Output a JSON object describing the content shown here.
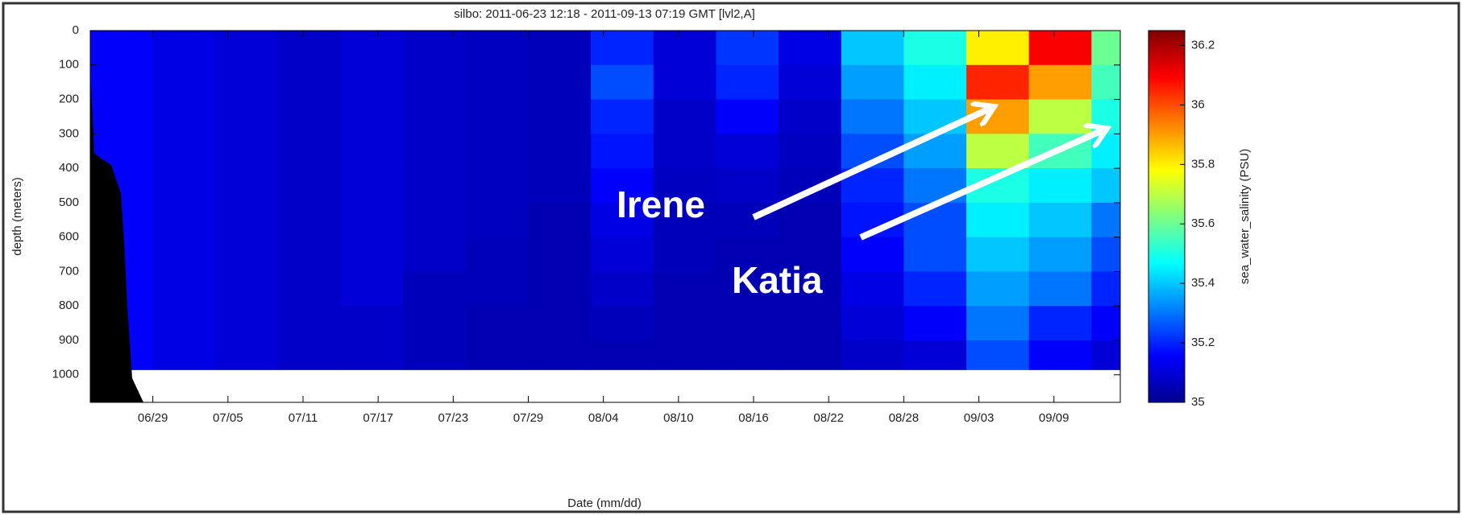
{
  "chart_data": {
    "type": "heatmap",
    "title": "silbo: 2011-06-23 12:18 - 2011-09-13 07:19 GMT [lvl2,A]",
    "x_label": "Date (mm/dd)",
    "y_label": "depth (meters)",
    "colorbar_label": "sea_water_salinity (PSU)",
    "x_bins": [
      175,
      180,
      185,
      190,
      195,
      200,
      205,
      210,
      215,
      220,
      225,
      230,
      235,
      240,
      245,
      250,
      255,
      257.3
    ],
    "y_bins": [
      0,
      100,
      200,
      300,
      400,
      500,
      600,
      700,
      800,
      900,
      985
    ],
    "values": [
      [
        35.15,
        35.15,
        35.15,
        35.15,
        35.15,
        35.15,
        35.15,
        35.15,
        35.15,
        35.15
      ],
      [
        35.12,
        35.12,
        35.12,
        35.12,
        35.12,
        35.12,
        35.12,
        35.12,
        35.12,
        35.12
      ],
      [
        35.1,
        35.1,
        35.1,
        35.1,
        35.1,
        35.1,
        35.1,
        35.1,
        35.1,
        35.1
      ],
      [
        35.08,
        35.08,
        35.08,
        35.08,
        35.08,
        35.08,
        35.08,
        35.08,
        35.08,
        35.08
      ],
      [
        35.1,
        35.1,
        35.1,
        35.1,
        35.1,
        35.1,
        35.1,
        35.1,
        35.08,
        35.08
      ],
      [
        35.08,
        35.08,
        35.08,
        35.08,
        35.08,
        35.08,
        35.08,
        35.06,
        35.06,
        35.06
      ],
      [
        35.07,
        35.07,
        35.07,
        35.07,
        35.07,
        35.07,
        35.06,
        35.06,
        35.05,
        35.05
      ],
      [
        35.06,
        35.06,
        35.06,
        35.06,
        35.06,
        35.05,
        35.05,
        35.05,
        35.05,
        35.05
      ],
      [
        35.2,
        35.25,
        35.2,
        35.18,
        35.15,
        35.12,
        35.1,
        35.08,
        35.06,
        35.05
      ],
      [
        35.1,
        35.1,
        35.08,
        35.08,
        35.07,
        35.06,
        35.06,
        35.05,
        35.05,
        35.05
      ],
      [
        35.22,
        35.2,
        35.15,
        35.1,
        35.08,
        35.06,
        35.05,
        35.05,
        35.05,
        35.05
      ],
      [
        35.12,
        35.1,
        35.08,
        35.07,
        35.06,
        35.05,
        35.05,
        35.05,
        35.05,
        35.05
      ],
      [
        35.4,
        35.35,
        35.3,
        35.25,
        35.2,
        35.18,
        35.15,
        35.12,
        35.1,
        35.08
      ],
      [
        35.5,
        35.45,
        35.4,
        35.35,
        35.3,
        35.25,
        35.25,
        35.2,
        35.15,
        35.1
      ],
      [
        35.8,
        36.05,
        35.9,
        35.7,
        35.5,
        35.45,
        35.4,
        35.35,
        35.3,
        35.25
      ],
      [
        36.1,
        35.9,
        35.7,
        35.55,
        35.45,
        35.4,
        35.35,
        35.3,
        35.2,
        35.15
      ],
      [
        35.6,
        35.55,
        35.5,
        35.45,
        35.4,
        35.3,
        35.25,
        35.2,
        35.15,
        35.1
      ]
    ],
    "xlim": [
      175,
      257.3
    ],
    "ylim": [
      0,
      1080
    ],
    "xticks": [
      {
        "value": 180,
        "label": "06/29"
      },
      {
        "value": 186,
        "label": "07/05"
      },
      {
        "value": 192,
        "label": "07/11"
      },
      {
        "value": 198,
        "label": "07/17"
      },
      {
        "value": 204,
        "label": "07/23"
      },
      {
        "value": 210,
        "label": "07/29"
      },
      {
        "value": 216,
        "label": "08/04"
      },
      {
        "value": 222,
        "label": "08/10"
      },
      {
        "value": 228,
        "label": "08/16"
      },
      {
        "value": 234,
        "label": "08/22"
      },
      {
        "value": 240,
        "label": "08/28"
      },
      {
        "value": 246,
        "label": "09/03"
      },
      {
        "value": 252,
        "label": "09/09"
      }
    ],
    "yticks": [
      0,
      100,
      200,
      300,
      400,
      500,
      600,
      700,
      800,
      900,
      1000
    ],
    "clim": [
      35,
      36.25
    ],
    "cticks": [
      35,
      35.2,
      35.4,
      35.6,
      35.8,
      36,
      36.2
    ],
    "colormap": [
      "#00008f",
      "#0000ff",
      "#0080ff",
      "#00ffff",
      "#80ff80",
      "#ffff00",
      "#ff8000",
      "#ff0000",
      "#800000"
    ],
    "annotations": [
      {
        "text": "Irene"
      },
      {
        "text": "Katia"
      }
    ]
  }
}
